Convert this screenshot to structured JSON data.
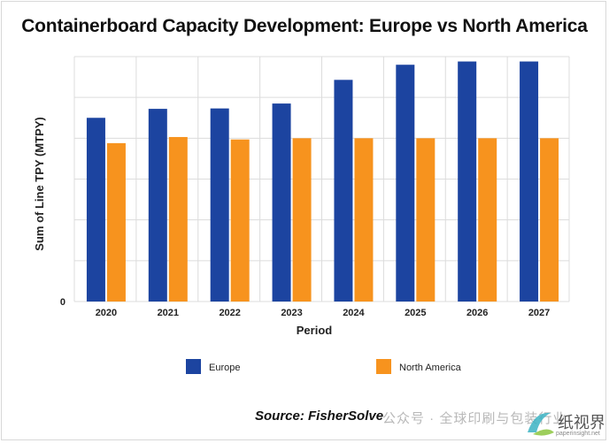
{
  "chart_data": {
    "type": "bar",
    "title": "Containerboard Capacity Development: Europe vs North America",
    "xlabel": "Period",
    "ylabel": "Sum of Line TPY (MTPY)",
    "categories": [
      "2020",
      "2021",
      "2022",
      "2023",
      "2024",
      "2025",
      "2026",
      "2027"
    ],
    "y_tick_labels": [
      "0"
    ],
    "ylim": [
      0,
      60
    ],
    "grid": true,
    "legend_position": "bottom",
    "series": [
      {
        "name": "Europe",
        "color": "#1c44a0",
        "values": [
          45.0,
          47.2,
          47.3,
          48.5,
          54.3,
          58.0,
          58.8,
          58.8
        ]
      },
      {
        "name": "North America",
        "color": "#f7931e",
        "values": [
          38.8,
          40.3,
          39.7,
          40.0,
          40.0,
          40.0,
          40.0,
          40.0
        ]
      }
    ]
  },
  "source": "Source: FisherSolve",
  "watermark": "公众号 · 全球印刷与包装行业",
  "logo": {
    "text": "纸视界",
    "site": "paperinsight.net"
  }
}
